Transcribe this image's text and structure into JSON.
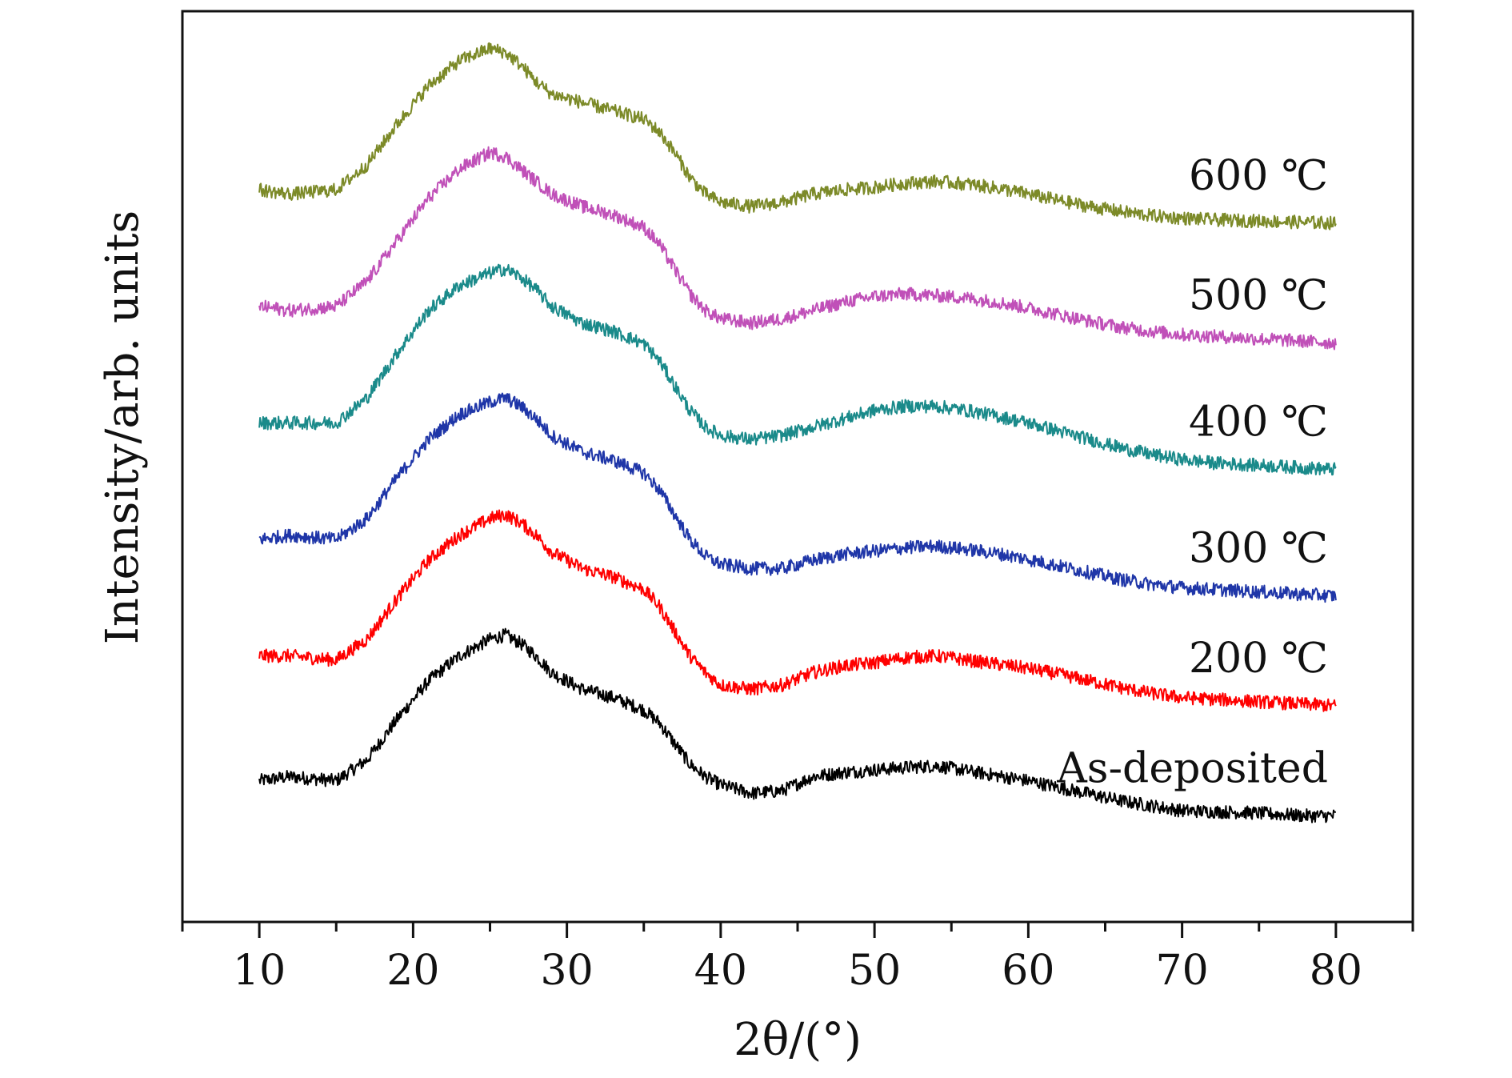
{
  "chart_data": {
    "type": "line",
    "title": "",
    "xlabel": "2θ/(°)",
    "ylabel": "Intensity/arb. units",
    "xlim": [
      5,
      85
    ],
    "x_ticks": [
      10,
      20,
      30,
      40,
      50,
      60,
      70,
      80
    ],
    "x_minor_ticks": [
      5,
      15,
      25,
      35,
      45,
      55,
      65,
      75,
      85
    ],
    "y_ticks": [],
    "ylim": [
      0,
      100
    ],
    "grid": false,
    "legend": "none",
    "series": [
      {
        "name": "As-deposited",
        "color": "#000000",
        "points": [
          [
            10,
            11
          ],
          [
            12,
            11.5
          ],
          [
            15,
            11
          ],
          [
            17,
            13.5
          ],
          [
            19,
            18.5
          ],
          [
            21,
            23
          ],
          [
            23,
            26
          ],
          [
            25,
            28
          ],
          [
            26,
            28.5
          ],
          [
            27,
            27.5
          ],
          [
            28,
            26
          ],
          [
            29,
            24
          ],
          [
            31,
            22
          ],
          [
            33,
            21
          ],
          [
            35,
            19.5
          ],
          [
            36,
            18
          ],
          [
            37,
            15.5
          ],
          [
            38,
            13
          ],
          [
            39,
            11.5
          ],
          [
            40,
            10.5
          ],
          [
            42,
            9.5
          ],
          [
            44,
            9.8
          ],
          [
            46,
            11.5
          ],
          [
            48,
            12
          ],
          [
            50,
            12.3
          ],
          [
            52,
            12.6
          ],
          [
            54,
            12.8
          ],
          [
            56,
            12.2
          ],
          [
            58,
            11.6
          ],
          [
            60,
            11
          ],
          [
            62,
            10.2
          ],
          [
            64,
            9.4
          ],
          [
            66,
            8.6
          ],
          [
            68,
            8
          ],
          [
            70,
            7.4
          ],
          [
            72,
            7.3
          ],
          [
            74,
            7.2
          ],
          [
            76,
            7
          ],
          [
            78,
            6.8
          ],
          [
            80,
            6.8
          ]
        ]
      },
      {
        "name": "200 ℃",
        "color": "#ff0000",
        "points": [
          [
            10,
            26
          ],
          [
            12,
            26
          ],
          [
            15,
            25.5
          ],
          [
            17,
            28
          ],
          [
            19,
            33
          ],
          [
            21,
            37.5
          ],
          [
            23,
            40.5
          ],
          [
            25,
            42.5
          ],
          [
            26,
            43
          ],
          [
            27,
            42
          ],
          [
            28,
            40.5
          ],
          [
            29,
            38.5
          ],
          [
            31,
            36.5
          ],
          [
            33,
            35.5
          ],
          [
            35,
            34
          ],
          [
            36,
            32
          ],
          [
            37,
            29
          ],
          [
            38,
            26
          ],
          [
            39,
            24
          ],
          [
            40,
            22.5
          ],
          [
            42,
            22
          ],
          [
            44,
            22.5
          ],
          [
            46,
            24
          ],
          [
            48,
            24.8
          ],
          [
            50,
            25.2
          ],
          [
            52,
            25.8
          ],
          [
            54,
            26
          ],
          [
            56,
            25.5
          ],
          [
            58,
            25
          ],
          [
            60,
            24.5
          ],
          [
            62,
            23.8
          ],
          [
            64,
            23
          ],
          [
            66,
            22.2
          ],
          [
            68,
            21.5
          ],
          [
            70,
            21
          ],
          [
            72,
            20.8
          ],
          [
            74,
            20.6
          ],
          [
            76,
            20.4
          ],
          [
            78,
            20.2
          ],
          [
            80,
            20
          ]
        ]
      },
      {
        "name": "300 ℃",
        "color": "#1f36a8",
        "points": [
          [
            10,
            40
          ],
          [
            12,
            40.5
          ],
          [
            15,
            40
          ],
          [
            17,
            42.5
          ],
          [
            19,
            47.5
          ],
          [
            21,
            52
          ],
          [
            23,
            55
          ],
          [
            25,
            56.5
          ],
          [
            26,
            57
          ],
          [
            27,
            56
          ],
          [
            28,
            54.5
          ],
          [
            29,
            52.5
          ],
          [
            31,
            50.5
          ],
          [
            33,
            49.5
          ],
          [
            35,
            48
          ],
          [
            36,
            46
          ],
          [
            37,
            43
          ],
          [
            38,
            40
          ],
          [
            39,
            38
          ],
          [
            40,
            37
          ],
          [
            42,
            36.5
          ],
          [
            44,
            36.5
          ],
          [
            46,
            37.5
          ],
          [
            48,
            38.2
          ],
          [
            50,
            38.6
          ],
          [
            52,
            39
          ],
          [
            54,
            39.2
          ],
          [
            56,
            38.8
          ],
          [
            58,
            38.3
          ],
          [
            60,
            37.6
          ],
          [
            62,
            36.8
          ],
          [
            64,
            36
          ],
          [
            66,
            35.2
          ],
          [
            68,
            34.6
          ],
          [
            70,
            34.2
          ],
          [
            72,
            34
          ],
          [
            74,
            33.8
          ],
          [
            76,
            33.6
          ],
          [
            78,
            33.4
          ],
          [
            80,
            33.2
          ]
        ]
      },
      {
        "name": "400 ℃",
        "color": "#1a8a8a",
        "points": [
          [
            10,
            54
          ],
          [
            12,
            54
          ],
          [
            15,
            54
          ],
          [
            17,
            57
          ],
          [
            19,
            62.5
          ],
          [
            21,
            67.5
          ],
          [
            23,
            70.5
          ],
          [
            25,
            72
          ],
          [
            26,
            72.5
          ],
          [
            27,
            71.5
          ],
          [
            28,
            70
          ],
          [
            29,
            68
          ],
          [
            31,
            66
          ],
          [
            33,
            65
          ],
          [
            35,
            63.5
          ],
          [
            36,
            61.5
          ],
          [
            37,
            58.5
          ],
          [
            38,
            55.5
          ],
          [
            39,
            53.5
          ],
          [
            40,
            52.5
          ],
          [
            42,
            52
          ],
          [
            44,
            52.5
          ],
          [
            46,
            53.5
          ],
          [
            48,
            54.5
          ],
          [
            50,
            55.5
          ],
          [
            52,
            56
          ],
          [
            54,
            56
          ],
          [
            56,
            55.5
          ],
          [
            58,
            54.8
          ],
          [
            60,
            54
          ],
          [
            62,
            53
          ],
          [
            64,
            52
          ],
          [
            66,
            51
          ],
          [
            68,
            50.2
          ],
          [
            70,
            49.6
          ],
          [
            72,
            49.2
          ],
          [
            74,
            49
          ],
          [
            76,
            48.8
          ],
          [
            78,
            48.6
          ],
          [
            80,
            48.4
          ]
        ]
      },
      {
        "name": "500 ℃",
        "color": "#c050b8",
        "points": [
          [
            10,
            68
          ],
          [
            12,
            67.5
          ],
          [
            15,
            68
          ],
          [
            17,
            71
          ],
          [
            19,
            76
          ],
          [
            21,
            81
          ],
          [
            23,
            84.5
          ],
          [
            25,
            86.5
          ],
          [
            26,
            86
          ],
          [
            27,
            84.5
          ],
          [
            28,
            83
          ],
          [
            29,
            81.5
          ],
          [
            31,
            80
          ],
          [
            33,
            79
          ],
          [
            35,
            77.5
          ],
          [
            36,
            75.5
          ],
          [
            37,
            72.5
          ],
          [
            38,
            69.5
          ],
          [
            39,
            67.5
          ],
          [
            40,
            66.5
          ],
          [
            42,
            66
          ],
          [
            44,
            66.5
          ],
          [
            46,
            67.5
          ],
          [
            48,
            68.5
          ],
          [
            50,
            69.2
          ],
          [
            52,
            69.5
          ],
          [
            54,
            69.3
          ],
          [
            56,
            69
          ],
          [
            58,
            68.5
          ],
          [
            60,
            67.8
          ],
          [
            62,
            67
          ],
          [
            64,
            66.2
          ],
          [
            66,
            65.5
          ],
          [
            68,
            65
          ],
          [
            70,
            64.6
          ],
          [
            72,
            64.4
          ],
          [
            74,
            64.2
          ],
          [
            76,
            64
          ],
          [
            78,
            63.8
          ],
          [
            80,
            63.6
          ]
        ]
      },
      {
        "name": "600 ℃",
        "color": "#7c8a28",
        "points": [
          [
            10,
            82
          ],
          [
            12,
            81.5
          ],
          [
            15,
            82
          ],
          [
            17,
            85
          ],
          [
            19,
            90
          ],
          [
            21,
            94.5
          ],
          [
            23,
            97.5
          ],
          [
            25,
            99
          ],
          [
            26,
            98.5
          ],
          [
            27,
            97
          ],
          [
            28,
            95
          ],
          [
            29,
            93.5
          ],
          [
            31,
            92.5
          ],
          [
            33,
            91.5
          ],
          [
            35,
            90.5
          ],
          [
            36,
            89
          ],
          [
            37,
            86.5
          ],
          [
            38,
            83.5
          ],
          [
            39,
            81.5
          ],
          [
            40,
            80.5
          ],
          [
            42,
            80
          ],
          [
            44,
            80.5
          ],
          [
            46,
            81.5
          ],
          [
            48,
            82
          ],
          [
            50,
            82.3
          ],
          [
            52,
            82.8
          ],
          [
            54,
            83
          ],
          [
            56,
            82.7
          ],
          [
            58,
            82.2
          ],
          [
            60,
            81.5
          ],
          [
            62,
            80.7
          ],
          [
            64,
            80
          ],
          [
            66,
            79.4
          ],
          [
            68,
            78.9
          ],
          [
            70,
            78.6
          ],
          [
            72,
            78.4
          ],
          [
            74,
            78.3
          ],
          [
            76,
            78.2
          ],
          [
            78,
            78.1
          ],
          [
            80,
            78
          ]
        ]
      }
    ]
  }
}
